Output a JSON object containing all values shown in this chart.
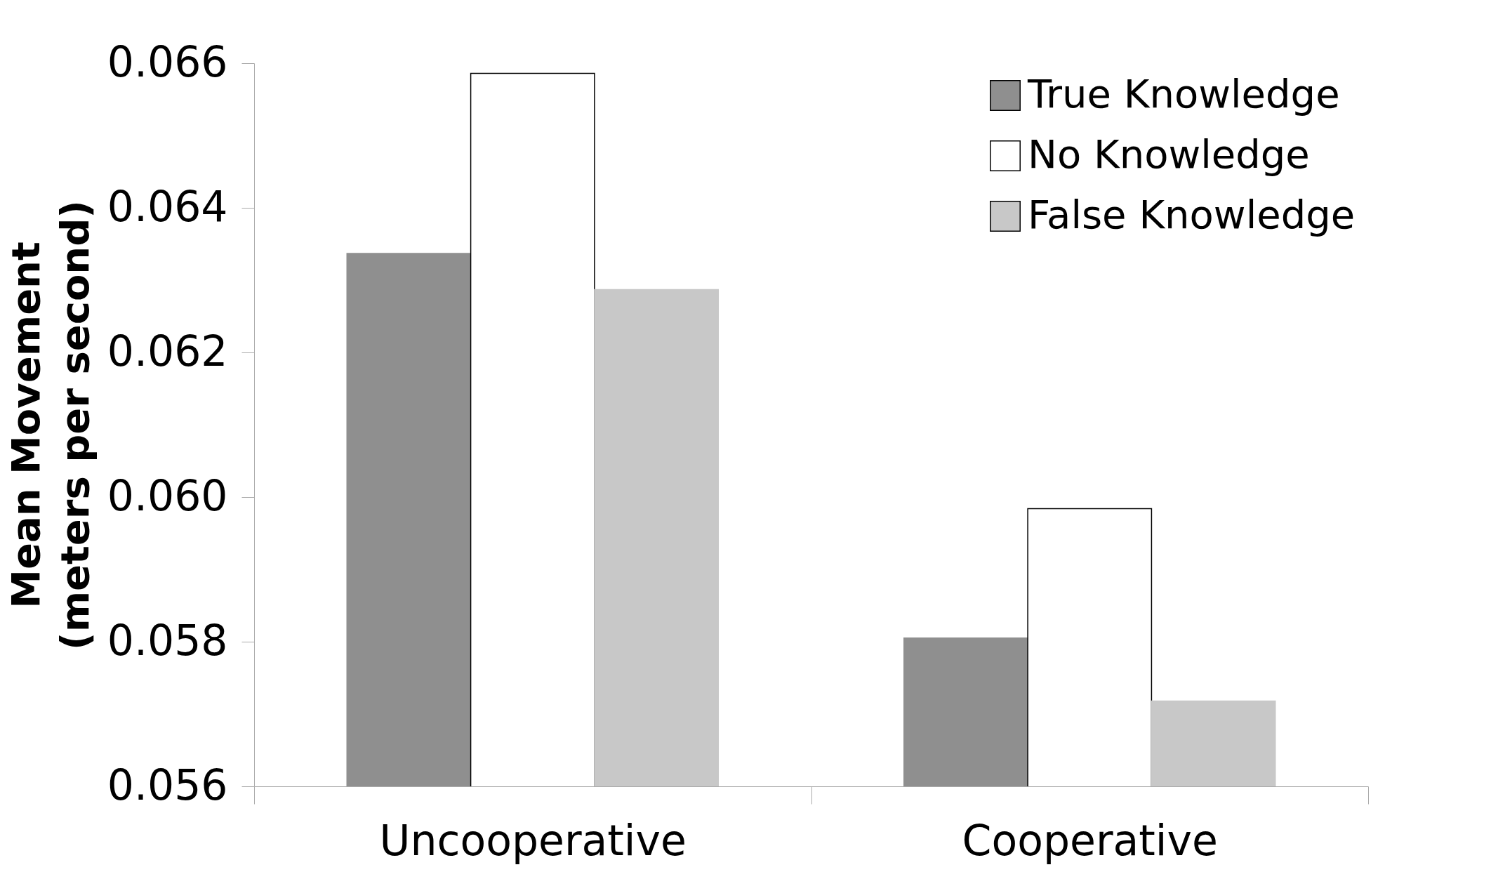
{
  "chart_data": {
    "type": "bar",
    "ylabel": "Mean Movement (meters per second)",
    "categories": [
      "Uncooperative",
      "Cooperative"
    ],
    "series": [
      {
        "name": "True Knowledge",
        "color": "#8f8f8f",
        "values": [
          0.06337,
          0.05805
        ]
      },
      {
        "name": "No Knowledge",
        "color": "#ffffff",
        "values": [
          0.06586,
          0.05984
        ]
      },
      {
        "name": "False Knowledge",
        "color": "#c8c8c8",
        "values": [
          0.06287,
          0.05718
        ]
      }
    ],
    "ylim": [
      0.056,
      0.066
    ],
    "yticks": [
      0.056,
      0.058,
      {
        "value": 0.06,
        "label": "0.060"
      },
      0.062,
      0.064,
      0.066
    ],
    "grid": false,
    "legend": "top right"
  }
}
